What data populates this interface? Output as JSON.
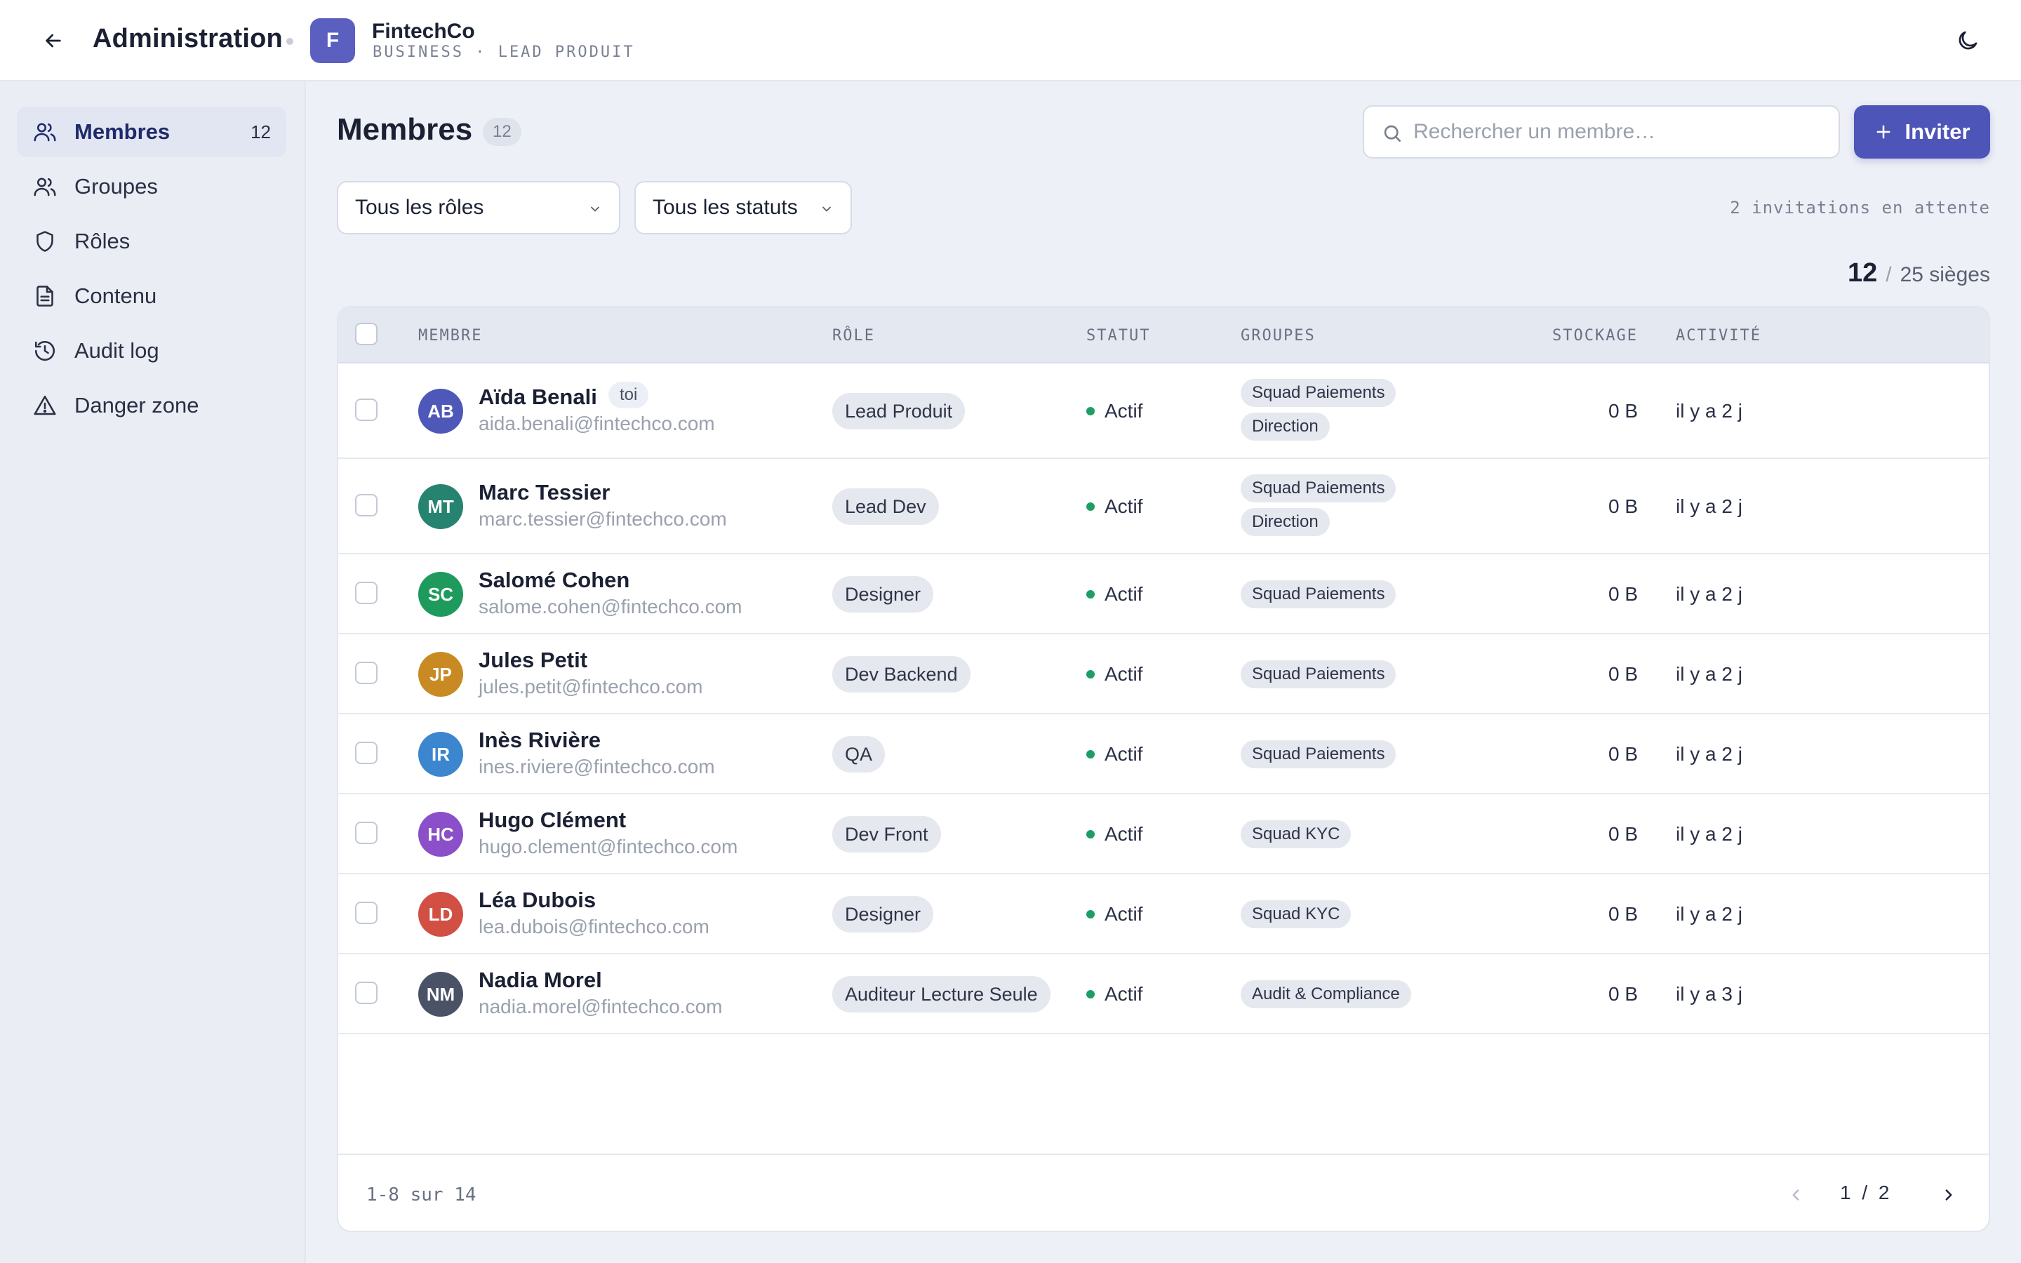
{
  "header": {
    "title": "Administration",
    "org": {
      "initial": "F",
      "name": "FintechCo",
      "subtitle": "BUSINESS · LEAD PRODUIT",
      "badge_color": "#5a5fc0"
    }
  },
  "sidebar": {
    "items": [
      {
        "label": "Membres",
        "count": "12",
        "icon": "users-icon",
        "active": true
      },
      {
        "label": "Groupes",
        "icon": "group-icon"
      },
      {
        "label": "Rôles",
        "icon": "shield-icon"
      },
      {
        "label": "Contenu",
        "icon": "document-icon"
      },
      {
        "label": "Audit log",
        "icon": "history-icon"
      },
      {
        "label": "Danger zone",
        "icon": "warning-icon"
      }
    ]
  },
  "main": {
    "title": "Membres",
    "count": "12",
    "search": {
      "placeholder": "Rechercher un membre…",
      "value": ""
    },
    "invite_label": "Inviter",
    "filters": {
      "role": "Tous les rôles",
      "status": "Tous les statuts"
    },
    "pending": "2 invitations en attente",
    "seats": {
      "used": "12",
      "slash": "/",
      "total": "25 sièges"
    }
  },
  "table": {
    "columns": [
      "MEMBRE",
      "RÔLE",
      "STATUT",
      "GROUPES",
      "STOCKAGE",
      "ACTIVITÉ"
    ],
    "rows": [
      {
        "initials": "AB",
        "name": "Aïda Benali",
        "tag": "toi",
        "email": "aida.benali@fintechco.com",
        "role": "Lead Produit",
        "status": "Actif",
        "groups": [
          "Squad Paiements",
          "Direction"
        ],
        "storage": "0 B",
        "activity": "il y a 2 j",
        "color": "#4e58b8"
      },
      {
        "initials": "MT",
        "name": "Marc Tessier",
        "email": "marc.tessier@fintechco.com",
        "role": "Lead Dev",
        "status": "Actif",
        "groups": [
          "Squad Paiements",
          "Direction"
        ],
        "storage": "0 B",
        "activity": "il y a 2 j",
        "color": "#25836f"
      },
      {
        "initials": "SC",
        "name": "Salomé Cohen",
        "email": "salome.cohen@fintechco.com",
        "role": "Designer",
        "status": "Actif",
        "groups": [
          "Squad Paiements"
        ],
        "storage": "0 B",
        "activity": "il y a 2 j",
        "color": "#1e9b5c"
      },
      {
        "initials": "JP",
        "name": "Jules Petit",
        "email": "jules.petit@fintechco.com",
        "role": "Dev Backend",
        "status": "Actif",
        "groups": [
          "Squad Paiements"
        ],
        "storage": "0 B",
        "activity": "il y a 2 j",
        "color": "#c98a24"
      },
      {
        "initials": "IR",
        "name": "Inès Rivière",
        "email": "ines.riviere@fintechco.com",
        "role": "QA",
        "status": "Actif",
        "groups": [
          "Squad Paiements"
        ],
        "storage": "0 B",
        "activity": "il y a 2 j",
        "color": "#3b86cf"
      },
      {
        "initials": "HC",
        "name": "Hugo Clément",
        "email": "hugo.clement@fintechco.com",
        "role": "Dev Front",
        "status": "Actif",
        "groups": [
          "Squad KYC"
        ],
        "storage": "0 B",
        "activity": "il y a 2 j",
        "color": "#8a4fc9"
      },
      {
        "initials": "LD",
        "name": "Léa Dubois",
        "email": "lea.dubois@fintechco.com",
        "role": "Designer",
        "status": "Actif",
        "groups": [
          "Squad KYC"
        ],
        "storage": "0 B",
        "activity": "il y a 2 j",
        "color": "#d24f44"
      },
      {
        "initials": "NM",
        "name": "Nadia Morel",
        "email": "nadia.morel@fintechco.com",
        "role": "Auditeur Lecture Seule",
        "status": "Actif",
        "groups": [
          "Audit & Compliance"
        ],
        "storage": "0 B",
        "activity": "il y a 3 j",
        "color": "#4a5266"
      }
    ],
    "range": "1-8 sur 14",
    "page": "1 / 2"
  },
  "colors": {
    "accent": "#4d55b8",
    "status_active": "#1e9e63"
  }
}
